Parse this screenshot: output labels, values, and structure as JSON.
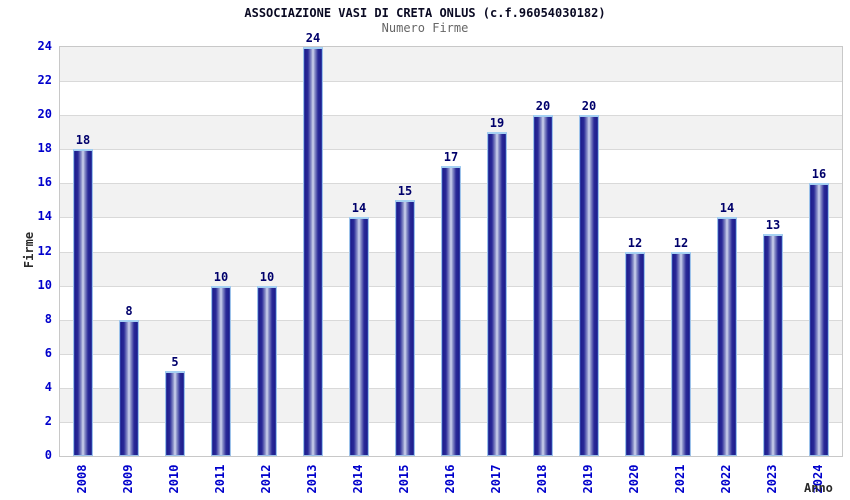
{
  "chart_data": {
    "type": "bar",
    "title": "ASSOCIAZIONE VASI DI CRETA ONLUS (c.f.96054030182)",
    "subtitle": "Numero Firme",
    "xlabel": "Anno",
    "ylabel": "Firme",
    "categories": [
      "2008",
      "2009",
      "2010",
      "2011",
      "2012",
      "2013",
      "2014",
      "2015",
      "2016",
      "2017",
      "2018",
      "2019",
      "2020",
      "2021",
      "2022",
      "2023",
      "2024"
    ],
    "values": [
      18,
      8,
      5,
      10,
      10,
      24,
      14,
      15,
      17,
      19,
      20,
      20,
      12,
      12,
      14,
      13,
      16
    ],
    "ylim": [
      0,
      24
    ],
    "ytick_step": 2,
    "grid": true,
    "alternating_bands": true,
    "legend": false,
    "bar_value_labels": true,
    "x_tick_rotation": 90,
    "colors": {
      "tick_label": "#0000cc",
      "value_label": "#00006b",
      "band": "#f2f2f2",
      "gridline": "#d9d9d9",
      "plot_border": "#c8c8c8",
      "title": "#0a0a23",
      "subtitle": "#666666",
      "axis_title": "#2a2a2a",
      "bar_dark": "#1e1e8c",
      "bar_mid": "#8a90c8",
      "bar_light": "#d0d5ef",
      "bar_edge": "#3c52b8",
      "bar_border": "#9cc2ea",
      "bar_cap": "#a5d0f2"
    }
  }
}
